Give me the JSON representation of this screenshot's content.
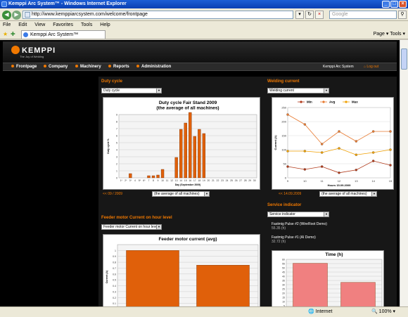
{
  "browser": {
    "title": "Kemppi Arc System™ - Windows Internet Explorer",
    "url": "http://www.kemppiarcsystem.com/welcome/frontpage",
    "search_placeholder": "Google",
    "menu": [
      "File",
      "Edit",
      "View",
      "Favorites",
      "Tools",
      "Help"
    ],
    "tab_title": "Kemppi Arc System™",
    "tools": "Page ▾  Tools ▾",
    "status_zone": "Internet",
    "zoom": "100%"
  },
  "site": {
    "logo": "KEMPPI",
    "tagline": "The Joy of Welding",
    "nav": [
      "Frontpage",
      "Company",
      "Machinery",
      "Reports",
      "Administration"
    ],
    "system_name": "Kemppi Arc System",
    "logout": "Log out",
    "accent": "#f07800"
  },
  "panels": {
    "duty": {
      "title": "Duty cycle",
      "select": "Duty cycle",
      "date": "<< 09 / 2009",
      "machine_select": "(the average of all machines)"
    },
    "welding": {
      "title": "Welding current",
      "select": "Welding current",
      "date": "<< 14.09.2009",
      "machine_select": "(the average of all machines)"
    },
    "feeder": {
      "title": "Feeder motor Current on hour level",
      "select": "Feeder motor Current on hour level"
    },
    "service": {
      "title": "Service indicator",
      "select": "Service indicator",
      "items": [
        {
          "name": "Fastmig Pulse #2 (WireRoot Demo)",
          "value": "55.35 (h)"
        },
        {
          "name": "Fastmig Pulse #1 (AI Demo)",
          "value": "32.72 (h)"
        }
      ]
    }
  },
  "chart_data": [
    {
      "type": "bar",
      "title": "Duty cycle Fair Stand 2009",
      "subtitle": "(the average of all machines)",
      "xlabel": "Day (September 2009)",
      "ylabel": "Duty cycle %",
      "categories": [
        "1*",
        "2*",
        "3*",
        "4",
        "5*",
        "6*",
        "7",
        "8",
        "9",
        "10",
        "11",
        "12",
        "13",
        "14",
        "15",
        "16",
        "17",
        "18",
        "19",
        "20",
        "21",
        "22",
        "23",
        "24",
        "25",
        "26",
        "27",
        "28",
        "29",
        "30"
      ],
      "values": [
        0,
        0,
        0.6,
        0,
        0,
        0,
        0.3,
        0.3,
        0.4,
        1.2,
        0,
        0,
        2.9,
        6.9,
        7.8,
        9.3,
        5.9,
        6.9,
        6.3,
        0,
        0,
        0,
        0,
        0,
        0,
        0,
        0,
        0,
        0,
        0
      ],
      "ylim": [
        0,
        9
      ],
      "yticks": [
        0,
        1,
        2,
        3,
        4,
        5,
        6,
        7,
        8,
        9
      ],
      "color": "#e0600a"
    },
    {
      "type": "line",
      "title": "",
      "xlabel": "Hours 15.09.2009",
      "ylabel": "Current (A)",
      "x": [
        9,
        10,
        11,
        12,
        13,
        14,
        15
      ],
      "xlim": [
        9,
        15
      ],
      "ylim": [
        0,
        250
      ],
      "yticks": [
        0,
        50,
        100,
        150,
        200,
        250
      ],
      "series": [
        {
          "name": "Min",
          "values": [
            40,
            30,
            40,
            18,
            28,
            60,
            45
          ],
          "color": "#b13a1a"
        },
        {
          "name": "Avg",
          "values": [
            225,
            190,
            120,
            165,
            130,
            165,
            165
          ],
          "color": "#e87a30"
        },
        {
          "name": "Max",
          "values": [
            95,
            95,
            90,
            105,
            82,
            90,
            100
          ],
          "color": "#f0a000"
        }
      ]
    },
    {
      "type": "bar",
      "title": "Feeder motor current (avg)",
      "ylabel": "Current (A)",
      "categories": [
        "",
        ""
      ],
      "values": [
        1.0,
        0.75
      ],
      "ylim": [
        0,
        1.1
      ],
      "yticks": [
        0,
        0.1,
        0.2,
        0.3,
        0.4,
        0.5,
        0.6,
        0.7,
        0.8,
        0.9,
        1
      ],
      "color": "#e0600a"
    },
    {
      "type": "bar",
      "title": "Time (h)",
      "categories": [
        "",
        ""
      ],
      "values": [
        55.35,
        32.72
      ],
      "ylim": [
        0,
        60
      ],
      "yticks": [
        0,
        5,
        10,
        15,
        20,
        25,
        30,
        35,
        40,
        45,
        50,
        55,
        60
      ],
      "color": "#f08080"
    }
  ]
}
